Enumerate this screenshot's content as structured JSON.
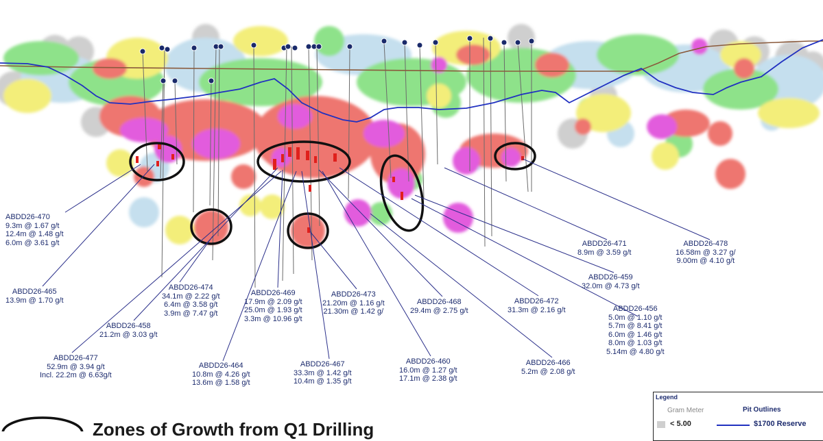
{
  "holes": [
    {
      "id": "ABDD26-470",
      "lines": [
        "9.3m @ 1.67 g/t",
        "12.4m @ 1.48 g/t",
        "6.0m @ 3.61 g/t"
      ]
    },
    {
      "id": "ABDD26-465",
      "lines": [
        "13.9m @ 1.70 g/t"
      ]
    },
    {
      "id": "ABDD26-474",
      "lines": [
        "34.1m @ 2.22 g/t",
        "6.4m @ 3.58 g/t",
        "3.9m @ 7.47 g/t"
      ]
    },
    {
      "id": "ABDD26-458",
      "lines": [
        "21.2m @ 3.03 g/t"
      ]
    },
    {
      "id": "ABDD26-477",
      "lines": [
        "52.9m @ 3.94 g/t",
        "Incl. 22.2m @ 6.63g/t"
      ]
    },
    {
      "id": "ABDD26-469",
      "lines": [
        "17.9m @ 2.09 g/t",
        "25.0m @ 1.93 g/t",
        "3.3m @ 10.96 g/t"
      ]
    },
    {
      "id": "ABDD26-464",
      "lines": [
        "10.8m @ 4.26 g/t",
        "13.6m @ 1.58 g/t"
      ]
    },
    {
      "id": "ABDD26-473",
      "lines": [
        "21.20m @ 1.16 g/t",
        "21.30m @ 1.42 g/"
      ]
    },
    {
      "id": "ABDD26-467",
      "lines": [
        "33.3m @ 1.42 g/t",
        "10.4m @ 1.35 g/t"
      ]
    },
    {
      "id": "ABDD26-468",
      "lines": [
        "29.4m @ 2.75 g/t"
      ]
    },
    {
      "id": "ABDD26-460",
      "lines": [
        "16.0m @ 1.27 g/t",
        "17.1m @ 2.38 g/t"
      ]
    },
    {
      "id": "ABDD26-472",
      "lines": [
        "31.3m @ 2.16 g/t"
      ]
    },
    {
      "id": "ABDD26-466",
      "lines": [
        "5.2m @ 2.08 g/t"
      ]
    },
    {
      "id": "ABDD26-471",
      "lines": [
        "8.9m @ 3.59 g/t"
      ]
    },
    {
      "id": "ABDD26-459",
      "lines": [
        "32.0m @ 4.73 g/t"
      ]
    },
    {
      "id": "ABDD26-478",
      "lines": [
        "16.58m @ 3.27 g/",
        "9.00m @ 4.10 g/t"
      ]
    },
    {
      "id": "ABDD26-456",
      "lines": [
        "5.0m @ 1.10 g/t",
        "5.7m @ 8.41 g/t",
        "6.0m @ 1.46 g/t",
        "8.0m @ 1.03 g/t",
        "5.14m @ 4.80 g/t"
      ]
    }
  ],
  "legend": {
    "title": "Legend",
    "gram_meter_label": "Gram Meter",
    "pit_outlines_label": "Pit Outlines",
    "lt_label": "< 5.00",
    "reserve_label": "$1700 Reserve"
  },
  "note": {
    "text": "Zones of Growth from Q1 Drilling"
  },
  "colors": {
    "label_text": "#1c2b6e",
    "pit_outline": "#2030c0",
    "topography": "#8a5a3c",
    "grade_grey": "#cfcfcf",
    "grade_lightblue": "#c5dfee",
    "grade_green": "#8ee28a",
    "grade_yellow": "#f3ee7a",
    "grade_red": "#ee7670",
    "grade_magenta": "#e25cdd"
  }
}
